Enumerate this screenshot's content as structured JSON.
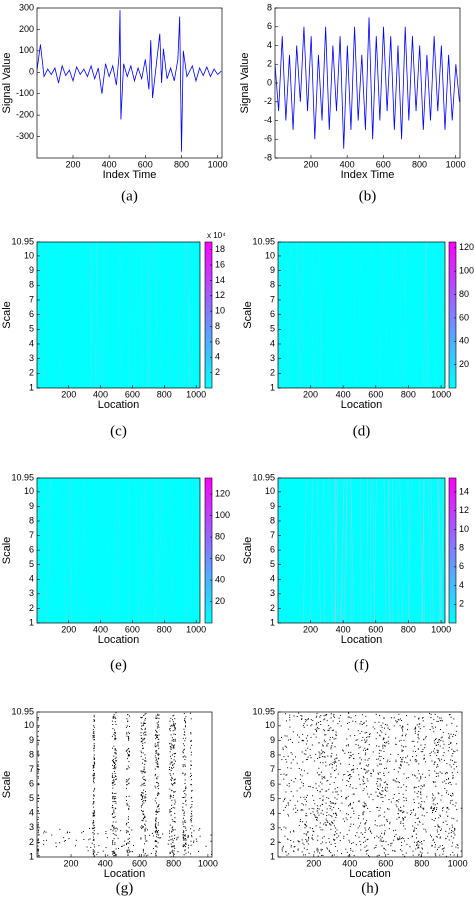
{
  "chart_data": [
    {
      "type": "line",
      "caption": "(a)",
      "xlabel": "Index Time",
      "ylabel": "Signal Value",
      "color": "#0000ff",
      "xlim": [
        1,
        1024
      ],
      "ylim": [
        -400,
        300
      ],
      "xticks": [
        200,
        400,
        600,
        800,
        1000
      ],
      "yticks": [
        -300,
        -200,
        -100,
        0,
        100,
        200,
        300
      ],
      "x": [
        1,
        20,
        40,
        60,
        80,
        100,
        120,
        140,
        160,
        180,
        200,
        220,
        240,
        260,
        280,
        300,
        320,
        340,
        360,
        380,
        400,
        420,
        440,
        455,
        460,
        465,
        480,
        500,
        520,
        540,
        560,
        580,
        600,
        620,
        630,
        640,
        660,
        680,
        690,
        700,
        720,
        740,
        760,
        780,
        790,
        800,
        810,
        830,
        860,
        880,
        900,
        920,
        940,
        960,
        980,
        1000,
        1020
      ],
      "values": [
        10,
        130,
        -20,
        15,
        -10,
        20,
        -50,
        30,
        -15,
        10,
        -40,
        25,
        -10,
        15,
        -20,
        30,
        -30,
        20,
        -100,
        40,
        -20,
        30,
        -60,
        80,
        290,
        -220,
        40,
        -20,
        30,
        -40,
        20,
        -30,
        60,
        -80,
        150,
        -120,
        30,
        180,
        -50,
        110,
        -30,
        20,
        -40,
        60,
        260,
        -370,
        100,
        -20,
        30,
        -40,
        20,
        -15,
        25,
        -20,
        15,
        -10,
        5
      ]
    },
    {
      "type": "line",
      "caption": "(b)",
      "xlabel": "Index Time",
      "ylabel": "Signal Value",
      "color": "#0000ff",
      "xlim": [
        1,
        1024
      ],
      "ylim": [
        -8,
        8
      ],
      "xticks": [
        200,
        400,
        600,
        800,
        1000
      ],
      "yticks": [
        -8,
        -6,
        -4,
        -2,
        0,
        2,
        4,
        6,
        8
      ],
      "x": [
        1,
        21,
        41,
        61,
        81,
        101,
        121,
        141,
        161,
        181,
        201,
        221,
        241,
        261,
        281,
        301,
        321,
        341,
        361,
        381,
        401,
        421,
        441,
        461,
        481,
        501,
        521,
        541,
        561,
        581,
        601,
        621,
        641,
        661,
        681,
        701,
        721,
        741,
        761,
        781,
        801,
        821,
        841,
        861,
        881,
        901,
        921,
        941,
        961,
        981,
        1001,
        1021
      ],
      "values": [
        2,
        -3,
        5,
        -4,
        3,
        -5,
        4,
        -2,
        6,
        -3,
        5,
        -6,
        3,
        -4,
        6,
        -5,
        4,
        -3,
        5,
        -7,
        4,
        -5,
        6,
        -4,
        3,
        -5,
        7,
        -6,
        5,
        -4,
        6,
        -3,
        5,
        -5,
        4,
        -6,
        6,
        -4,
        5,
        -3,
        4,
        -5,
        3,
        -4,
        5,
        -3,
        4,
        -5,
        3,
        -4,
        2,
        -2
      ]
    },
    {
      "type": "heatmap",
      "caption": "(c)",
      "xlabel": "Location",
      "ylabel": "Scale",
      "xlim": [
        1,
        1024
      ],
      "ylim": [
        1,
        10.95
      ],
      "xticks": [
        200,
        400,
        600,
        800,
        1000
      ],
      "yticks": [
        1,
        2,
        3,
        4,
        5,
        6,
        7,
        8,
        9,
        10,
        10.95
      ],
      "colors": [
        "#00ffff",
        "#ff00ff"
      ],
      "clim": [
        0,
        19
      ],
      "cticks": [
        2,
        4,
        6,
        8,
        10,
        12,
        14,
        16,
        18
      ],
      "colorbar_label": "x 10⁴"
    },
    {
      "type": "heatmap",
      "caption": "(d)",
      "xlabel": "Location",
      "ylabel": "Scale",
      "xlim": [
        1,
        1024
      ],
      "ylim": [
        1,
        10.95
      ],
      "xticks": [
        200,
        400,
        600,
        800,
        1000
      ],
      "yticks": [
        1,
        2,
        3,
        4,
        5,
        6,
        7,
        8,
        9,
        10,
        10.95
      ],
      "colors": [
        "#00ffff",
        "#ff00ff"
      ],
      "clim": [
        0,
        125
      ],
      "cticks": [
        20,
        40,
        60,
        80,
        100,
        120
      ]
    },
    {
      "type": "heatmap",
      "caption": "(e)",
      "xlabel": "Location",
      "ylabel": "Scale",
      "xlim": [
        1,
        1024
      ],
      "ylim": [
        1,
        10.95
      ],
      "xticks": [
        200,
        400,
        600,
        800,
        1000
      ],
      "yticks": [
        1,
        2,
        3,
        4,
        5,
        6,
        7,
        8,
        9,
        10,
        10.95
      ],
      "colors": [
        "#00ffff",
        "#ff00ff"
      ],
      "clim": [
        0,
        135
      ],
      "cticks": [
        20,
        40,
        60,
        80,
        100,
        120
      ]
    },
    {
      "type": "heatmap",
      "caption": "(f)",
      "xlabel": "Location",
      "ylabel": "Scale",
      "xlim": [
        1,
        1024
      ],
      "ylim": [
        1,
        10.95
      ],
      "xticks": [
        200,
        400,
        600,
        800,
        1000
      ],
      "yticks": [
        1,
        2,
        3,
        4,
        5,
        6,
        7,
        8,
        9,
        10,
        10.95
      ],
      "colors": [
        "#00ffff",
        "#ff00ff"
      ],
      "clim": [
        0,
        15.5
      ],
      "cticks": [
        2,
        4,
        6,
        8,
        10,
        12,
        14
      ]
    },
    {
      "type": "dotmap",
      "caption": "(g)",
      "xlabel": "Location",
      "ylabel": "Scale",
      "xlim": [
        1,
        1024
      ],
      "ylim": [
        1,
        10.95
      ],
      "xticks": [
        200,
        400,
        600,
        800,
        1000
      ],
      "yticks": [
        1,
        2,
        3,
        4,
        5,
        6,
        7,
        8,
        9,
        10,
        10.95
      ]
    },
    {
      "type": "dotmap",
      "caption": "(h)",
      "xlabel": "Location",
      "ylabel": "Scale",
      "xlim": [
        1,
        1024
      ],
      "ylim": [
        1,
        10.95
      ],
      "xticks": [
        200,
        400,
        600,
        800,
        1000
      ],
      "yticks": [
        1,
        2,
        3,
        4,
        5,
        6,
        7,
        8,
        9,
        10,
        10.95
      ]
    }
  ]
}
